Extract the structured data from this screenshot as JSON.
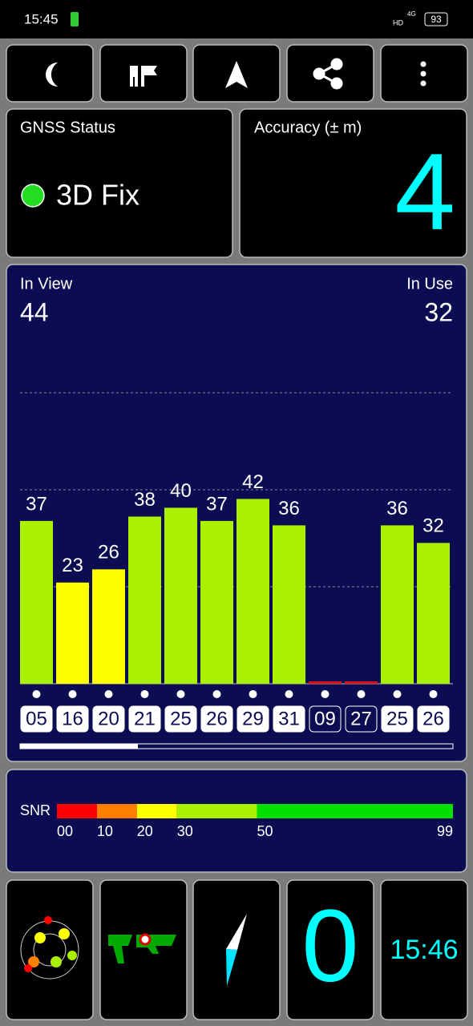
{
  "status_bar": {
    "time": "15:45",
    "hd": "HD",
    "network": "4G",
    "battery": "93"
  },
  "gnss_status": {
    "title": "GNSS Status",
    "fix": "3D Fix"
  },
  "accuracy": {
    "title": "Accuracy (± m)",
    "value": "4"
  },
  "satellites": {
    "in_view_label": "In View",
    "in_view": "44",
    "in_use_label": "In Use",
    "in_use": "32",
    "chart_data": {
      "type": "bar",
      "categories": [
        "05",
        "16",
        "20",
        "21",
        "25",
        "26",
        "29",
        "31",
        "09",
        "27",
        "25",
        "26"
      ],
      "values": [
        37,
        23,
        26,
        38,
        40,
        37,
        42,
        36,
        0,
        0,
        36,
        32
      ],
      "value_labels": [
        "37",
        "23",
        "26",
        "38",
        "40",
        "37",
        "42",
        "36",
        null,
        null,
        "36",
        "32"
      ],
      "colors": [
        "#aaf000",
        "#ffff00",
        "#ffff00",
        "#aaf000",
        "#aaf000",
        "#aaf000",
        "#aaf000",
        "#aaf000",
        "#e01010",
        "#e01010",
        "#aaf000",
        "#aaf000"
      ],
      "used": [
        true,
        true,
        true,
        true,
        true,
        true,
        true,
        true,
        false,
        false,
        true,
        true
      ],
      "ylim": [
        0,
        88
      ]
    }
  },
  "snr": {
    "label": "SNR",
    "xlim": [
      0,
      99
    ],
    "ticks": [
      {
        "value": 0,
        "label": "00"
      },
      10,
      20,
      30,
      50,
      99
    ],
    "bands": [
      {
        "from": 0,
        "to": 10,
        "color": "#ff0000"
      },
      {
        "from": 10,
        "to": 20,
        "color": "#ff8000"
      },
      {
        "from": 20,
        "to": 30,
        "color": "#ffff00"
      },
      {
        "from": 30,
        "to": 50,
        "color": "#aaf000"
      },
      {
        "from": 50,
        "to": 99,
        "color": "#00e000"
      }
    ]
  },
  "tiles": {
    "speed": "0",
    "clock": "15:46"
  }
}
